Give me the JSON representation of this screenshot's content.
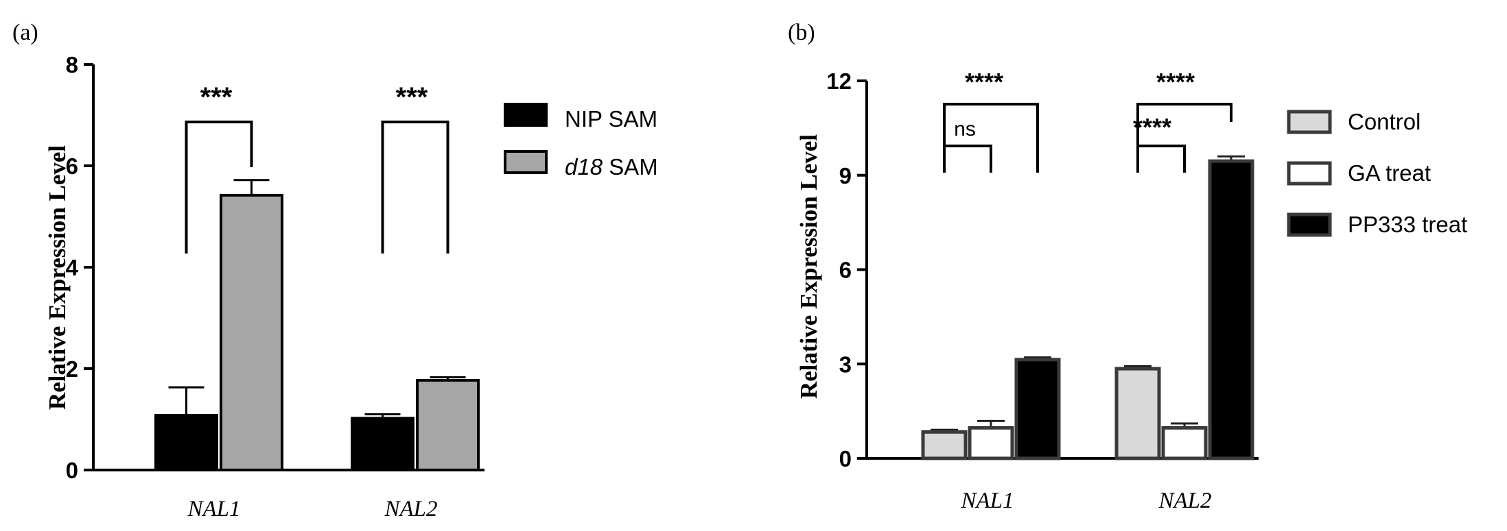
{
  "chart_data": [
    {
      "type": "bar",
      "panel": "(a)",
      "categories": [
        "NAL1",
        "NAL2"
      ],
      "ylabel": "Relative Expression Level",
      "ylim": [
        0,
        8
      ],
      "yticks": [
        "0",
        "2",
        "4",
        "6",
        "8"
      ],
      "series": [
        {
          "name": "NIP SAM",
          "values": [
            1.08,
            1.02
          ],
          "errors": [
            0.55,
            0.08
          ],
          "color": "#000000"
        },
        {
          "name_italic": "d18",
          "name_rest": " SAM",
          "values": [
            5.42,
            1.77
          ],
          "errors": [
            0.3,
            0.06
          ],
          "color": "#a6a6a6"
        }
      ],
      "significance": [
        {
          "category": "NAL1",
          "label": "***"
        },
        {
          "category": "NAL2",
          "label": "***"
        }
      ],
      "legend": "right"
    },
    {
      "type": "bar",
      "panel": "(b)",
      "categories": [
        "NAL1",
        "NAL2"
      ],
      "ylabel": "Relative Expression Level",
      "ylim": [
        0,
        12
      ],
      "yticks": [
        "0",
        "3",
        "6",
        "9",
        "12"
      ],
      "series": [
        {
          "name": "Control",
          "values": [
            0.84,
            2.85
          ],
          "errors": [
            0.07,
            0.08
          ],
          "color": "#d9d9d9"
        },
        {
          "name": "GA treat",
          "values": [
            0.97,
            0.97
          ],
          "errors": [
            0.22,
            0.14
          ],
          "color": "#ffffff"
        },
        {
          "name": "PP333 treat",
          "values": [
            3.14,
            9.45
          ],
          "errors": [
            0.07,
            0.15
          ],
          "color": "#000000"
        }
      ],
      "significance": [
        {
          "category": "NAL1",
          "comparison": "Control vs GA treat",
          "label": "ns"
        },
        {
          "category": "NAL1",
          "comparison": "Control vs PP333 treat",
          "label": "****"
        },
        {
          "category": "NAL2",
          "comparison": "Control vs GA treat",
          "label": "****"
        },
        {
          "category": "NAL2",
          "comparison": "Control vs PP333 treat",
          "label": "****"
        }
      ],
      "legend": "right"
    }
  ]
}
